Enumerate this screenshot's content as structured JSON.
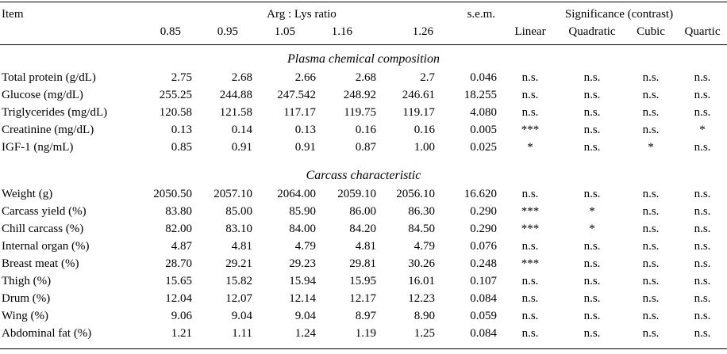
{
  "headers": {
    "item": "Item",
    "ratio_group": "Arg : Lys ratio",
    "ratios": [
      "0.85",
      "0.95",
      "1.05",
      "1.16",
      "1.26"
    ],
    "sem": "s.e.m.",
    "significance_group": "Significance (contrast)",
    "contrasts": [
      "Linear",
      "Quadratic",
      "Cubic",
      "Quartic"
    ]
  },
  "sections": [
    {
      "title": "Plasma chemical composition",
      "rows": [
        {
          "item": "Total protein (g/dL)",
          "values": [
            "2.75",
            "2.68",
            "2.66",
            "2.68",
            "2.7"
          ],
          "sem": "0.046",
          "sig": [
            "n.s.",
            "n.s.",
            "n.s.",
            "n.s."
          ]
        },
        {
          "item": "Glucose (mg/dL)",
          "values": [
            "255.25",
            "244.88",
            "247.542",
            "248.92",
            "246.61"
          ],
          "sem": "18.255",
          "sig": [
            "n.s.",
            "n.s.",
            "n.s.",
            "n.s."
          ]
        },
        {
          "item": "Triglycerides (mg/dL)",
          "values": [
            "120.58",
            "121.58",
            "117.17",
            "119.75",
            "119.17"
          ],
          "sem": "4.080",
          "sig": [
            "n.s.",
            "n.s.",
            "n.s.",
            "n.s."
          ]
        },
        {
          "item": "Creatinine (mg/dL)",
          "values": [
            "0.13",
            "0.14",
            "0.13",
            "0.16",
            "0.16"
          ],
          "sem": "0.005",
          "sig": [
            "***",
            "n.s.",
            "n.s.",
            "*"
          ]
        },
        {
          "item": "IGF-1 (ng/mL)",
          "values": [
            "0.85",
            "0.91",
            "0.91",
            "0.87",
            "1.00"
          ],
          "sem": "0.025",
          "sig": [
            "*",
            "n.s.",
            "*",
            "n.s."
          ]
        }
      ]
    },
    {
      "title": "Carcass characteristic",
      "rows": [
        {
          "item": "Weight (g)",
          "values": [
            "2050.50",
            "2057.10",
            "2064.00",
            "2059.10",
            "2056.10"
          ],
          "sem": "16.620",
          "sig": [
            "n.s.",
            "n.s.",
            "n.s.",
            "n.s."
          ]
        },
        {
          "item": "Carcass yield (%)",
          "values": [
            "83.80",
            "85.00",
            "85.90",
            "86.00",
            "86.30"
          ],
          "sem": "0.290",
          "sig": [
            "***",
            "*",
            "n.s.",
            "n.s."
          ]
        },
        {
          "item": "Chill carcass (%)",
          "values": [
            "82.00",
            "83.10",
            "84.00",
            "84.20",
            "84.50"
          ],
          "sem": "0.290",
          "sig": [
            "***",
            "*",
            "n.s.",
            "n.s."
          ]
        },
        {
          "item": "Internal organ (%)",
          "values": [
            "4.87",
            "4.81",
            "4.79",
            "4.81",
            "4.79"
          ],
          "sem": "0.076",
          "sig": [
            "n.s.",
            "n.s.",
            "n.s.",
            "n.s."
          ]
        },
        {
          "item": "Breast meat (%)",
          "values": [
            "28.70",
            "29.21",
            "29.23",
            "29.81",
            "30.26"
          ],
          "sem": "0.248",
          "sig": [
            "***",
            "n.s.",
            "n.s.",
            "n.s."
          ]
        },
        {
          "item": "Thigh (%)",
          "values": [
            "15.65",
            "15.82",
            "15.94",
            "15.95",
            "16.01"
          ],
          "sem": "0.107",
          "sig": [
            "n.s.",
            "n.s.",
            "n.s.",
            "n.s."
          ]
        },
        {
          "item": "Drum (%)",
          "values": [
            "12.04",
            "12.07",
            "12.14",
            "12.17",
            "12.23"
          ],
          "sem": "0.084",
          "sig": [
            "n.s.",
            "n.s.",
            "n.s.",
            "n.s."
          ]
        },
        {
          "item": "Wing (%)",
          "values": [
            "9.06",
            "9.04",
            "9.04",
            "8.97",
            "8.90"
          ],
          "sem": "0.059",
          "sig": [
            "n.s.",
            "n.s.",
            "n.s.",
            "n.s."
          ]
        },
        {
          "item": "Abdominal fat (%)",
          "values": [
            "1.21",
            "1.11",
            "1.24",
            "1.19",
            "1.25"
          ],
          "sem": "0.084",
          "sig": [
            "n.s.",
            "n.s.",
            "n.s.",
            "n.s."
          ]
        }
      ]
    }
  ]
}
